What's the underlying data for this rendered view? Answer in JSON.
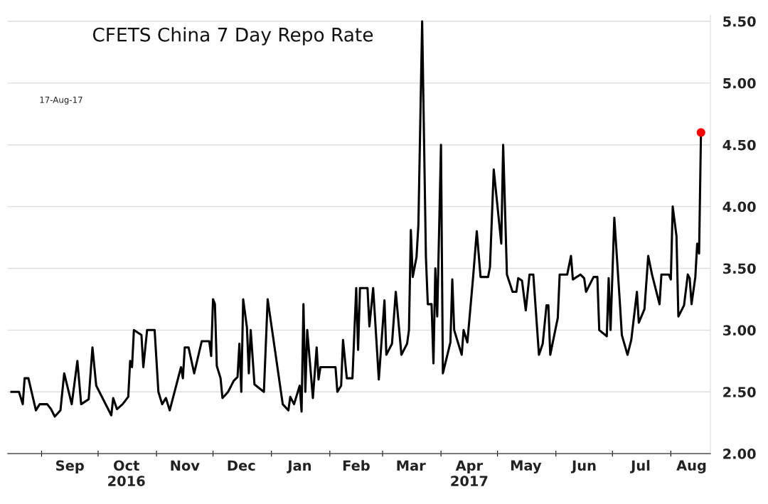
{
  "chart_data": {
    "type": "line",
    "title": "CFETS China 7 Day Repo Rate",
    "annotations": [
      "17-Aug-17"
    ],
    "xlim": [
      "2016-08-14",
      "2017-08-22"
    ],
    "xticks": [
      {
        "value": "2016-09-01",
        "label": null
      },
      {
        "value": "2016-09-16",
        "label": "Sep"
      },
      {
        "value": "2016-10-01",
        "label": null
      },
      {
        "value": "2016-10-16",
        "label": "Oct\n2016"
      },
      {
        "value": "2016-11-01",
        "label": null
      },
      {
        "value": "2016-11-16",
        "label": "Nov"
      },
      {
        "value": "2016-12-01",
        "label": null
      },
      {
        "value": "2016-12-16",
        "label": "Dec"
      },
      {
        "value": "2017-01-01",
        "label": null
      },
      {
        "value": "2017-01-16",
        "label": "Jan"
      },
      {
        "value": "2017-02-01",
        "label": null
      },
      {
        "value": "2017-02-15",
        "label": "Feb"
      },
      {
        "value": "2017-03-01",
        "label": null
      },
      {
        "value": "2017-03-16",
        "label": "Mar"
      },
      {
        "value": "2017-04-01",
        "label": null
      },
      {
        "value": "2017-04-16",
        "label": "Apr\n2017"
      },
      {
        "value": "2017-05-01",
        "label": null
      },
      {
        "value": "2017-05-16",
        "label": "May"
      },
      {
        "value": "2017-06-01",
        "label": null
      },
      {
        "value": "2017-06-16",
        "label": "Jun"
      },
      {
        "value": "2017-07-01",
        "label": null
      },
      {
        "value": "2017-07-16",
        "label": "Jul"
      },
      {
        "value": "2017-08-01",
        "label": null
      },
      {
        "value": "2017-08-12",
        "label": "Aug"
      }
    ],
    "ylim": [
      2.0,
      5.55
    ],
    "yticks": [
      {
        "value": 2.0,
        "label": "2.00"
      },
      {
        "value": 2.5,
        "label": "2.50"
      },
      {
        "value": 3.0,
        "label": "3.00"
      },
      {
        "value": 3.5,
        "label": "3.50"
      },
      {
        "value": 4.0,
        "label": "4.00"
      },
      {
        "value": 4.5,
        "label": "4.50"
      },
      {
        "value": 5.0,
        "label": "5.00"
      },
      {
        "value": 5.5,
        "label": "5.50"
      }
    ],
    "grid": "y",
    "legend": false,
    "series": [
      {
        "color": "#000000",
        "x": [
          "2016-08-16",
          "2016-08-20",
          "2016-08-22",
          "2016-08-23",
          "2016-08-25",
          "2016-08-29",
          "2016-08-31",
          "2016-09-04",
          "2016-09-06",
          "2016-09-08",
          "2016-09-11",
          "2016-09-13",
          "2016-09-17",
          "2016-09-20",
          "2016-09-22",
          "2016-09-26",
          "2016-09-28",
          "2016-09-30",
          "2016-10-08",
          "2016-10-09",
          "2016-10-11",
          "2016-10-14",
          "2016-10-17",
          "2016-10-18",
          "2016-10-19",
          "2016-10-20",
          "2016-10-24",
          "2016-10-25",
          "2016-10-27",
          "2016-10-31",
          "2016-11-02",
          "2016-11-04",
          "2016-11-06",
          "2016-11-08",
          "2016-11-14",
          "2016-11-15",
          "2016-11-16",
          "2016-11-18",
          "2016-11-21",
          "2016-11-25",
          "2016-11-29",
          "2016-11-30",
          "2016-12-01",
          "2016-12-02",
          "2016-12-03",
          "2016-12-05",
          "2016-12-06",
          "2016-12-09",
          "2016-12-12",
          "2016-12-14",
          "2016-12-15",
          "2016-12-16",
          "2016-12-17",
          "2016-12-19",
          "2016-12-20",
          "2016-12-21",
          "2016-12-23",
          "2016-12-28",
          "2016-12-30",
          "2017-01-07",
          "2017-01-10",
          "2017-01-11",
          "2017-01-13",
          "2017-01-16",
          "2017-01-17",
          "2017-01-18",
          "2017-01-19",
          "2017-01-20",
          "2017-01-23",
          "2017-01-25",
          "2017-01-26",
          "2017-01-27",
          "2017-02-04",
          "2017-02-05",
          "2017-02-07",
          "2017-02-08",
          "2017-02-10",
          "2017-02-13",
          "2017-02-15",
          "2017-02-16",
          "2017-02-17",
          "2017-02-21",
          "2017-02-22",
          "2017-02-24",
          "2017-02-27",
          "2017-03-02",
          "2017-03-03",
          "2017-03-06",
          "2017-03-08",
          "2017-03-11",
          "2017-03-14",
          "2017-03-15",
          "2017-03-16",
          "2017-03-17",
          "2017-03-19",
          "2017-03-20",
          "2017-03-22",
          "2017-03-24",
          "2017-03-25",
          "2017-03-27",
          "2017-03-28",
          "2017-03-29",
          "2017-03-30",
          "2017-04-01",
          "2017-04-02",
          "2017-04-06",
          "2017-04-07",
          "2017-04-08",
          "2017-04-12",
          "2017-04-13",
          "2017-04-15",
          "2017-04-18",
          "2017-04-20",
          "2017-04-22",
          "2017-04-26",
          "2017-04-27",
          "2017-04-29",
          "2017-05-03",
          "2017-05-04",
          "2017-05-06",
          "2017-05-09",
          "2017-05-11",
          "2017-05-12",
          "2017-05-14",
          "2017-05-16",
          "2017-05-18",
          "2017-05-20",
          "2017-05-23",
          "2017-05-25",
          "2017-05-27",
          "2017-05-28",
          "2017-05-29",
          "2017-06-02",
          "2017-06-03",
          "2017-06-07",
          "2017-06-09",
          "2017-06-10",
          "2017-06-14",
          "2017-06-16",
          "2017-06-17",
          "2017-06-21",
          "2017-06-23",
          "2017-06-24",
          "2017-06-28",
          "2017-06-29",
          "2017-06-30",
          "2017-07-02",
          "2017-07-05",
          "2017-07-06",
          "2017-07-09",
          "2017-07-11",
          "2017-07-14",
          "2017-07-15",
          "2017-07-18",
          "2017-07-20",
          "2017-07-22",
          "2017-07-26",
          "2017-07-27",
          "2017-07-31",
          "2017-08-01",
          "2017-08-02",
          "2017-08-04",
          "2017-08-05",
          "2017-08-08",
          "2017-08-10",
          "2017-08-11",
          "2017-08-12",
          "2017-08-14",
          "2017-08-15",
          "2017-08-16",
          "2017-08-17"
        ],
        "values": [
          2.5,
          2.5,
          2.4,
          2.61,
          2.61,
          2.35,
          2.4,
          2.4,
          2.36,
          2.3,
          2.35,
          2.65,
          2.4,
          2.75,
          2.4,
          2.44,
          2.86,
          2.55,
          2.31,
          2.45,
          2.36,
          2.4,
          2.46,
          2.75,
          2.7,
          3.0,
          2.96,
          2.7,
          3.0,
          3.0,
          2.5,
          2.4,
          2.45,
          2.35,
          2.7,
          2.61,
          2.86,
          2.86,
          2.65,
          2.91,
          2.91,
          2.79,
          3.25,
          3.21,
          2.71,
          2.61,
          2.45,
          2.5,
          2.59,
          2.62,
          2.89,
          2.5,
          3.25,
          3.02,
          2.65,
          3.0,
          2.56,
          2.5,
          3.25,
          2.4,
          2.35,
          2.46,
          2.4,
          2.55,
          2.34,
          3.21,
          2.5,
          3.0,
          2.45,
          2.86,
          2.6,
          2.7,
          2.7,
          2.5,
          2.55,
          2.92,
          2.61,
          2.61,
          3.34,
          2.84,
          3.34,
          3.34,
          3.03,
          3.34,
          2.6,
          3.24,
          2.8,
          2.89,
          3.31,
          2.8,
          2.89,
          3.0,
          3.81,
          3.43,
          3.59,
          3.85,
          5.5,
          3.59,
          3.21,
          3.21,
          2.73,
          3.5,
          3.11,
          4.5,
          2.65,
          2.9,
          3.41,
          3.0,
          2.8,
          3.0,
          2.9,
          3.42,
          3.8,
          3.43,
          3.43,
          3.51,
          4.3,
          3.7,
          4.5,
          3.45,
          3.31,
          3.31,
          3.42,
          3.4,
          3.16,
          3.45,
          3.45,
          2.8,
          2.89,
          3.2,
          3.2,
          2.8,
          3.1,
          3.45,
          3.45,
          3.6,
          3.41,
          3.45,
          3.42,
          3.31,
          3.43,
          3.43,
          3.0,
          2.95,
          3.42,
          3.0,
          3.91,
          3.21,
          2.96,
          2.8,
          2.92,
          3.31,
          3.06,
          3.17,
          3.6,
          3.45,
          3.21,
          3.45,
          3.45,
          3.41,
          4.0,
          3.76,
          3.11,
          3.2,
          3.45,
          3.42,
          3.21,
          3.43,
          3.7,
          3.62,
          4.6
        ]
      },
      {
        "type": "scatter",
        "color": "#ff0000",
        "marker": "circle",
        "x": [
          "2017-08-17"
        ],
        "values": [
          4.6
        ]
      }
    ]
  }
}
